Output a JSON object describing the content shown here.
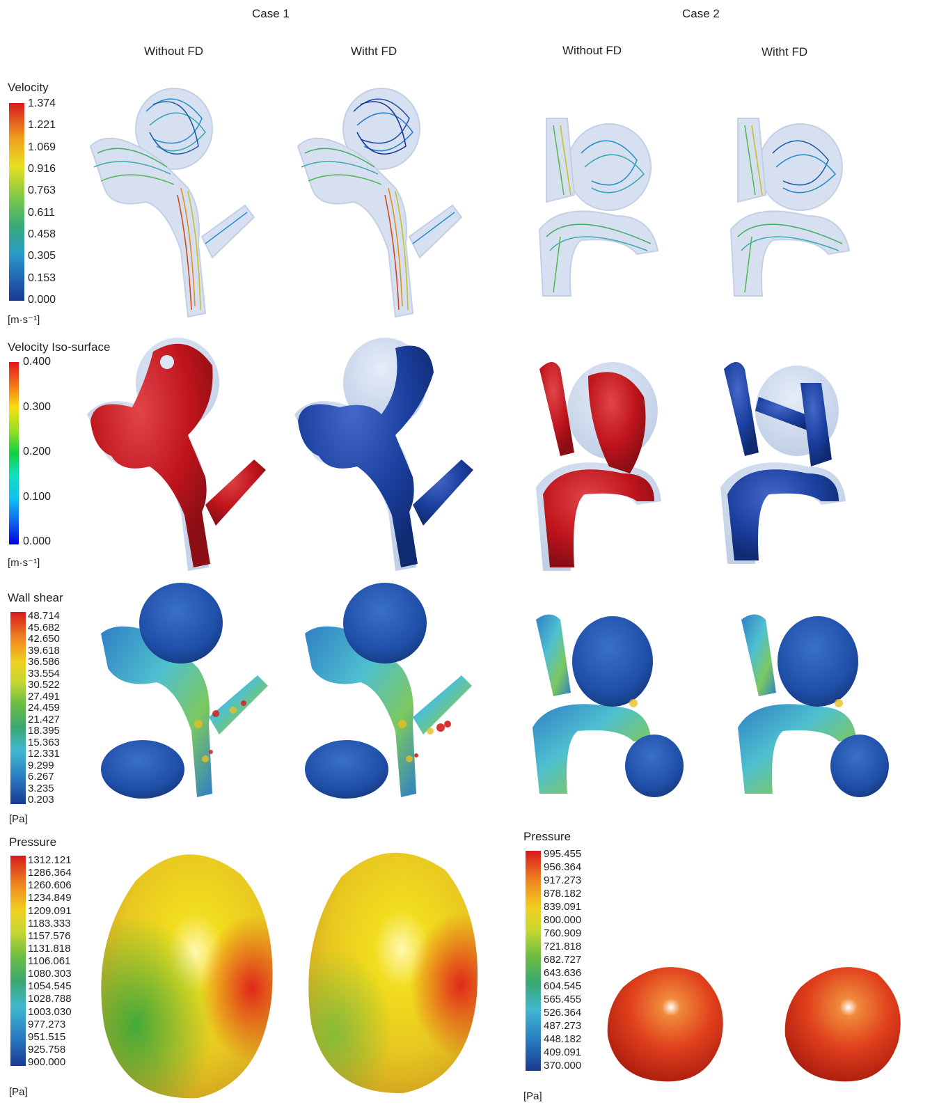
{
  "cases": [
    "Case 1",
    "Case 2"
  ],
  "columns": [
    "Without FD",
    "Witht FD",
    "Without FD",
    "Witht FD"
  ],
  "legends": {
    "velocity": {
      "title": "Velocity",
      "unit": "[m·s⁻¹]",
      "ticks": [
        "1.374",
        "1.221",
        "1.069",
        "0.916",
        "0.763",
        "0.611",
        "0.458",
        "0.305",
        "0.153",
        "0.000"
      ]
    },
    "iso": {
      "title": "Velocity Iso-surface",
      "unit": "[m·s⁻¹]",
      "ticks": [
        "0.400",
        "0.300",
        "0.200",
        "0.100",
        "0.000"
      ]
    },
    "shear": {
      "title": "Wall shear",
      "unit": "[Pa]",
      "ticks": [
        "48.714",
        "45.682",
        "42.650",
        "39.618",
        "36.586",
        "33.554",
        "30.522",
        "27.491",
        "24.459",
        "21.427",
        "18.395",
        "15.363",
        "12.331",
        "9.299",
        "6.267",
        "3.235",
        "0.203"
      ]
    },
    "pressure1": {
      "title": "Pressure",
      "unit": "[Pa]",
      "ticks": [
        "1312.121",
        "1286.364",
        "1260.606",
        "1234.849",
        "1209.091",
        "1183.333",
        "1157.576",
        "1131.818",
        "1106.061",
        "1080.303",
        "1054.545",
        "1028.788",
        "1003.030",
        "977.273",
        "951.515",
        "925.758",
        "900.000"
      ]
    },
    "pressure2": {
      "title": "Pressure",
      "unit": "[Pa]",
      "ticks": [
        "995.455",
        "956.364",
        "917.273",
        "878.182",
        "839.091",
        "800.000",
        "760.909",
        "721.818",
        "682.727",
        "643.636",
        "604.545",
        "565.455",
        "526.364",
        "487.273",
        "448.182",
        "409.091",
        "370.000"
      ]
    }
  },
  "colors": {
    "red": "#c0141c",
    "blue": "#1b3f9e",
    "vessel": "#9db4d8",
    "yellow": "#f2dd1e",
    "green": "#49b24a",
    "orange": "#e8661b"
  }
}
